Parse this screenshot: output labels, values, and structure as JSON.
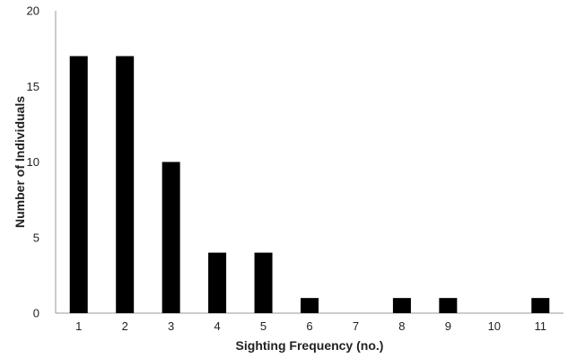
{
  "chart_data": {
    "type": "bar",
    "categories": [
      "1",
      "2",
      "3",
      "4",
      "5",
      "6",
      "7",
      "8",
      "9",
      "10",
      "11"
    ],
    "values": [
      17,
      17,
      10,
      4,
      4,
      1,
      0,
      1,
      1,
      0,
      1
    ],
    "title": "",
    "xlabel": "Sighting Frequency (no.)",
    "ylabel": "Number of Individuals",
    "ylim": [
      0,
      20
    ],
    "yticks": [
      0,
      5,
      10,
      15,
      20
    ],
    "grid": false,
    "legend": "none",
    "bar_color": "#000000",
    "axis_color": "#999999"
  }
}
